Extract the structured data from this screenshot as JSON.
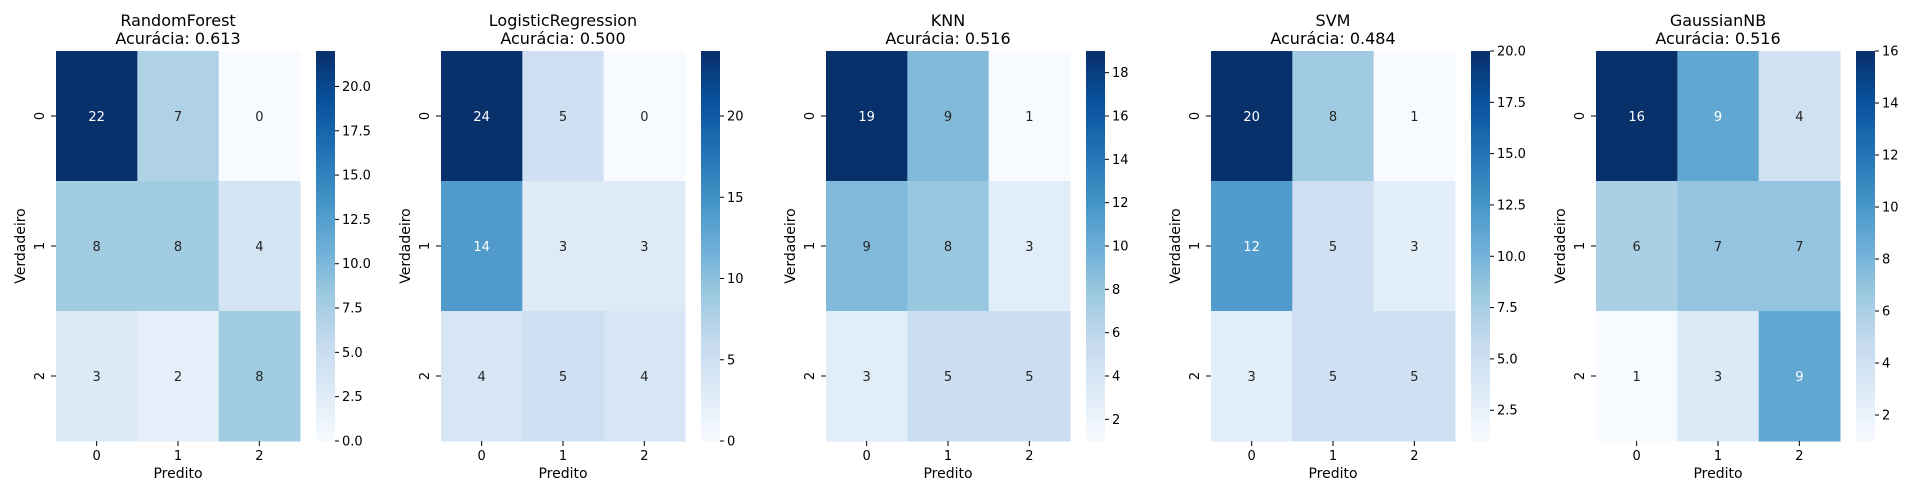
{
  "chart_data": [
    {
      "type": "heatmap",
      "title_line1": "RandomForest",
      "title_line2": "Acurácia: 0.613",
      "xlabel": "Predito",
      "ylabel": "Verdadeiro",
      "x_ticks": [
        "0",
        "1",
        "2"
      ],
      "y_ticks": [
        "0",
        "1",
        "2"
      ],
      "matrix": [
        [
          22,
          7,
          0
        ],
        [
          8,
          8,
          4
        ],
        [
          3,
          2,
          8
        ]
      ],
      "colorbar": {
        "vmin": 0,
        "vmax": 22,
        "ticks": [
          0,
          2.5,
          5,
          7.5,
          10,
          12.5,
          15,
          17.5,
          20
        ],
        "tick_labels": [
          "0.0",
          "2.5",
          "5.0",
          "7.5",
          "10.0",
          "12.5",
          "15.0",
          "17.5",
          "20.0"
        ]
      }
    },
    {
      "type": "heatmap",
      "title_line1": "LogisticRegression",
      "title_line2": "Acurácia: 0.500",
      "xlabel": "Predito",
      "ylabel": "Verdadeiro",
      "x_ticks": [
        "0",
        "1",
        "2"
      ],
      "y_ticks": [
        "0",
        "1",
        "2"
      ],
      "matrix": [
        [
          24,
          5,
          0
        ],
        [
          14,
          3,
          3
        ],
        [
          4,
          5,
          4
        ]
      ],
      "colorbar": {
        "vmin": 0,
        "vmax": 24,
        "ticks": [
          0,
          5,
          10,
          15,
          20
        ],
        "tick_labels": [
          "0",
          "5",
          "10",
          "15",
          "20"
        ]
      }
    },
    {
      "type": "heatmap",
      "title_line1": "KNN",
      "title_line2": "Acurácia: 0.516",
      "xlabel": "Predito",
      "ylabel": "Verdadeiro",
      "x_ticks": [
        "0",
        "1",
        "2"
      ],
      "y_ticks": [
        "0",
        "1",
        "2"
      ],
      "matrix": [
        [
          19,
          9,
          1
        ],
        [
          9,
          8,
          3
        ],
        [
          3,
          5,
          5
        ]
      ],
      "colorbar": {
        "vmin": 1,
        "vmax": 19,
        "ticks": [
          2,
          4,
          6,
          8,
          10,
          12,
          14,
          16,
          18
        ],
        "tick_labels": [
          "2",
          "4",
          "6",
          "8",
          "10",
          "12",
          "14",
          "16",
          "18"
        ]
      }
    },
    {
      "type": "heatmap",
      "title_line1": "SVM",
      "title_line2": "Acurácia: 0.484",
      "xlabel": "Predito",
      "ylabel": "Verdadeiro",
      "x_ticks": [
        "0",
        "1",
        "2"
      ],
      "y_ticks": [
        "0",
        "1",
        "2"
      ],
      "matrix": [
        [
          20,
          8,
          1
        ],
        [
          12,
          5,
          3
        ],
        [
          3,
          5,
          5
        ]
      ],
      "colorbar": {
        "vmin": 1,
        "vmax": 20,
        "ticks": [
          2.5,
          5,
          7.5,
          10,
          12.5,
          15,
          17.5,
          20
        ],
        "tick_labels": [
          "2.5",
          "5.0",
          "7.5",
          "10.0",
          "12.5",
          "15.0",
          "17.5",
          "20.0"
        ]
      }
    },
    {
      "type": "heatmap",
      "title_line1": "GaussianNB",
      "title_line2": "Acurácia: 0.516",
      "xlabel": "Predito",
      "ylabel": "Verdadeiro",
      "x_ticks": [
        "0",
        "1",
        "2"
      ],
      "y_ticks": [
        "0",
        "1",
        "2"
      ],
      "matrix": [
        [
          16,
          9,
          4
        ],
        [
          6,
          7,
          7
        ],
        [
          1,
          3,
          9
        ]
      ],
      "colorbar": {
        "vmin": 1,
        "vmax": 16,
        "ticks": [
          2,
          4,
          6,
          8,
          10,
          12,
          14,
          16
        ],
        "tick_labels": [
          "2",
          "4",
          "6",
          "8",
          "10",
          "12",
          "14",
          "16"
        ]
      }
    }
  ],
  "colormap": {
    "name": "Blues",
    "stops": [
      "#f7fbff",
      "#deebf7",
      "#c6dbef",
      "#9ecae1",
      "#6baed6",
      "#4292c6",
      "#2171b5",
      "#08519c",
      "#08306b"
    ]
  }
}
